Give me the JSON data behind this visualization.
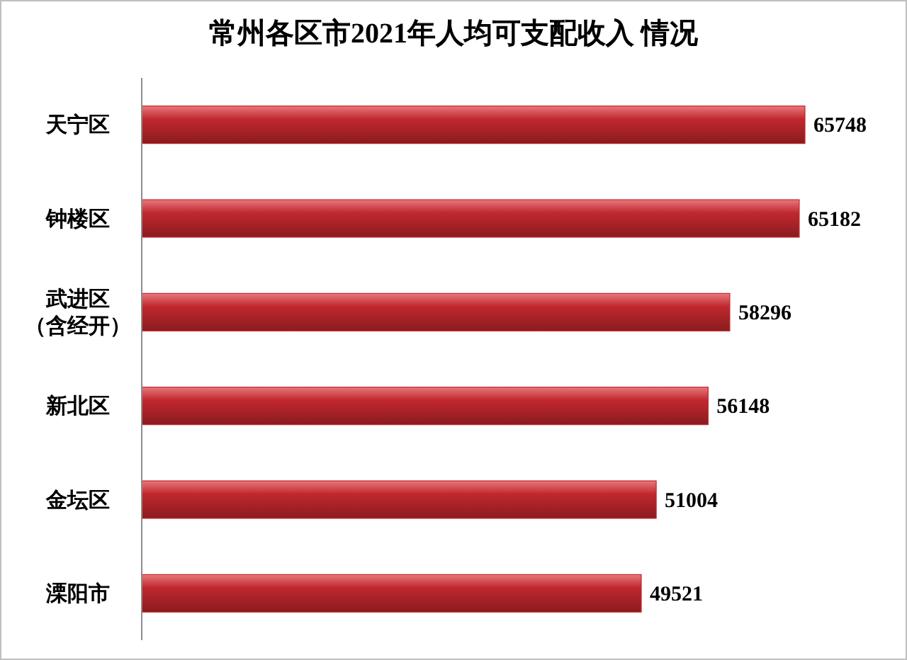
{
  "chart_data": {
    "type": "bar",
    "orientation": "horizontal",
    "title": "常州各区市2021年人均可支配收入 情况",
    "categories": [
      "天宁区",
      "钟楼区",
      "武进区（含经开）",
      "新北区",
      "金坛区",
      "溧阳市"
    ],
    "values": [
      65748,
      65182,
      58296,
      56148,
      51004,
      49521
    ],
    "color": "#c0282e",
    "data_labels": true
  }
}
